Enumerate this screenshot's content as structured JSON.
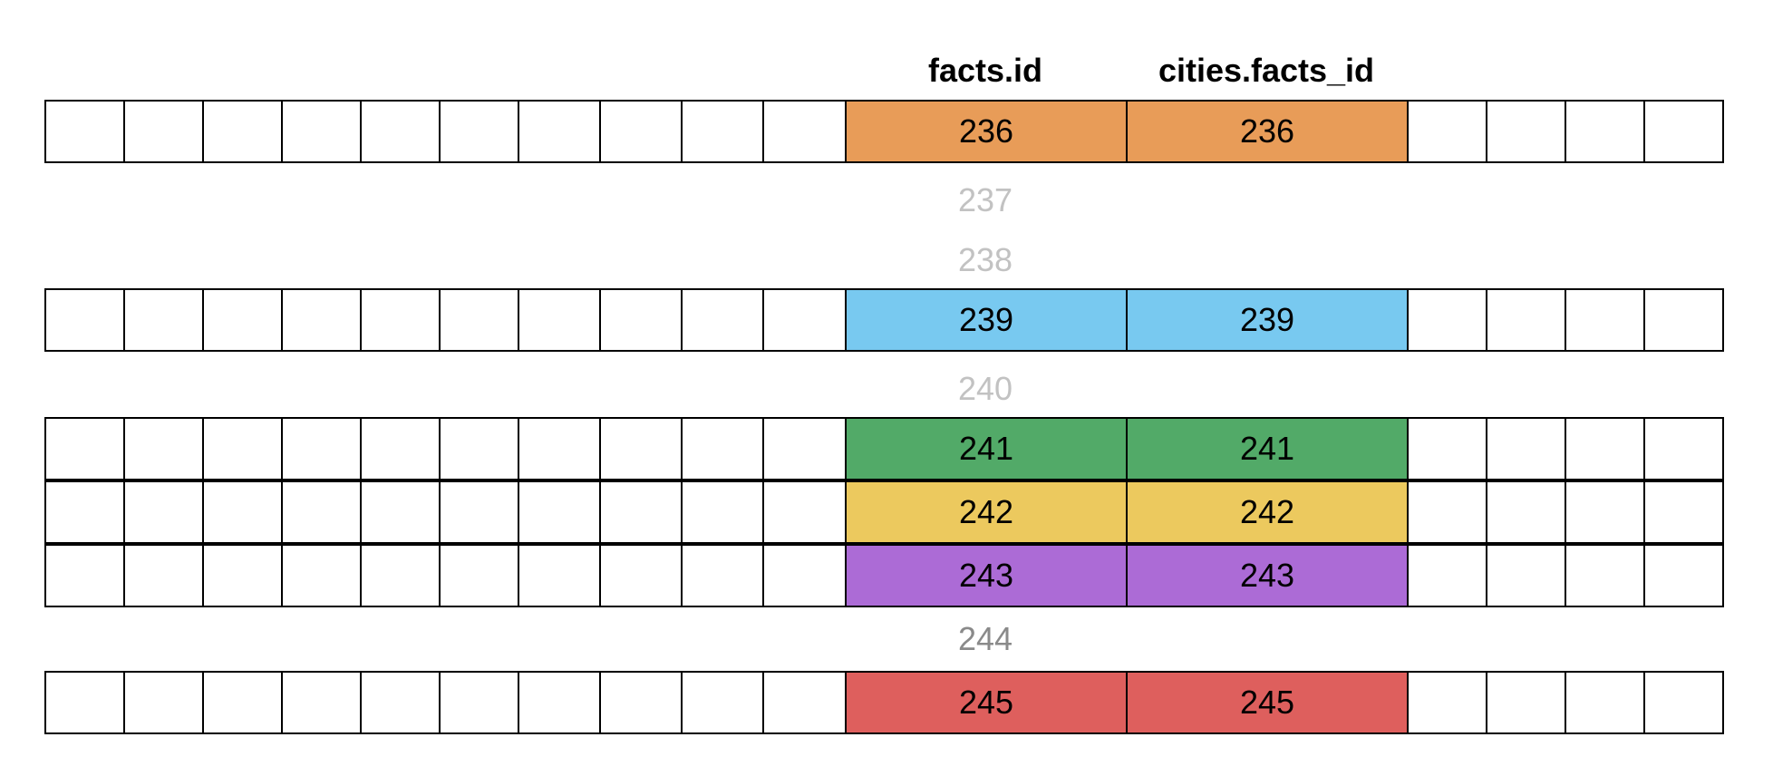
{
  "headers": {
    "facts_id": "facts.id",
    "cities_facts_id": "cities.facts_id"
  },
  "rows": [
    {
      "kind": "match",
      "facts_id": "236",
      "cities_facts_id": "236",
      "color": "#E89C58"
    },
    {
      "kind": "missing",
      "value": "237",
      "color": "#C2C2C2"
    },
    {
      "kind": "missing",
      "value": "238",
      "color": "#C2C2C2"
    },
    {
      "kind": "match",
      "facts_id": "239",
      "cities_facts_id": "239",
      "color": "#78C9F0"
    },
    {
      "kind": "missing",
      "value": "240",
      "color": "#C2C2C2"
    },
    {
      "kind": "match",
      "facts_id": "241",
      "cities_facts_id": "241",
      "color": "#52AA68"
    },
    {
      "kind": "match",
      "facts_id": "242",
      "cities_facts_id": "242",
      "color": "#ECC95E"
    },
    {
      "kind": "match",
      "facts_id": "243",
      "cities_facts_id": "243",
      "color": "#AC6BD6"
    },
    {
      "kind": "missing",
      "value": "244",
      "color": "#8A8A8A"
    },
    {
      "kind": "match",
      "facts_id": "245",
      "cities_facts_id": "245",
      "color": "#DE5F5D"
    }
  ]
}
